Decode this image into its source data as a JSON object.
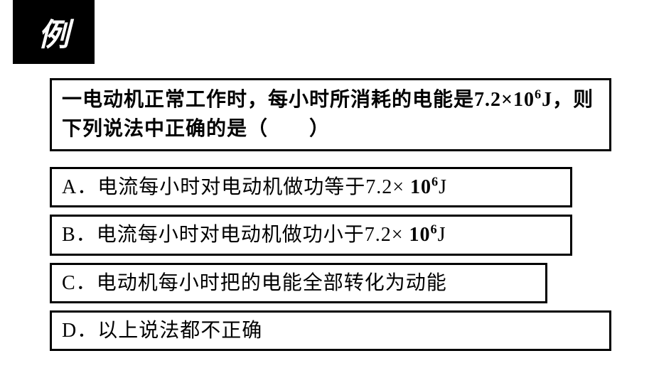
{
  "badge": {
    "label": "例",
    "background_color": "#000000",
    "text_color": "#ffffff",
    "font_size": 44
  },
  "question": {
    "prefix": "一电动机正常工作时，每小时所消耗的电能是",
    "value_num": "7.2×",
    "value_bold": "10",
    "value_sup": "6",
    "value_unit": "J",
    "suffix": "，则下列说法中正确的是（　　）"
  },
  "options": {
    "A": {
      "letter": "A．",
      "text_prefix": "电流每小时对电动机做功等于",
      "value_num": "7.2×",
      "value_bold": " 10",
      "value_sup": "6",
      "value_unit": "J"
    },
    "B": {
      "letter": "B．",
      "text_prefix": "电流每小时对电动机做功小于",
      "value_num": "7.2×",
      "value_bold": " 10",
      "value_sup": "6",
      "value_unit": "J"
    },
    "C": {
      "letter": "C．",
      "text": "电动机每小时把的电能全部转化为动能"
    },
    "D": {
      "letter": "D．",
      "text": "以上说法都不正确"
    }
  },
  "styling": {
    "border_color": "#000000",
    "border_width": 3,
    "background": "#ffffff",
    "question_font_size": 28,
    "option_font_size": 28,
    "font_family": "SimSun"
  }
}
